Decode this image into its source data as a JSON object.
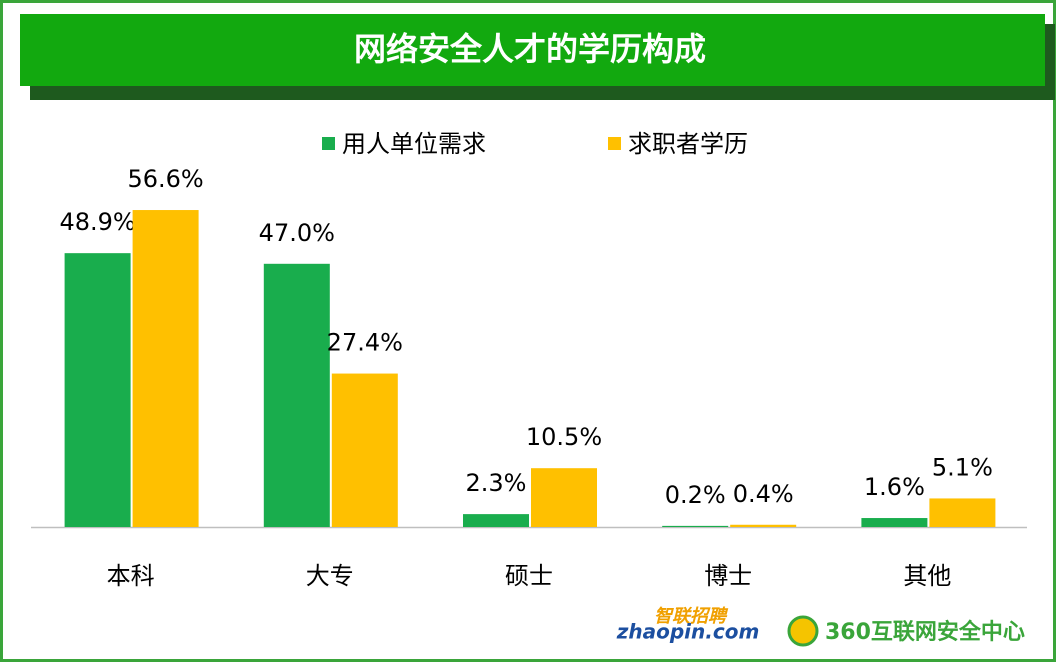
{
  "chart_data": {
    "type": "bar",
    "title": "网络安全人才的学历构成",
    "categories": [
      "本科",
      "大专",
      "硕士",
      "博士",
      "其他"
    ],
    "series": [
      {
        "name": "用人单位需求",
        "color": "#19ad4d",
        "values": [
          48.9,
          47.0,
          2.3,
          0.2,
          1.6
        ],
        "value_labels": [
          "48.9%",
          "47.0%",
          "2.3%",
          "0.2%",
          "1.6%"
        ]
      },
      {
        "name": "求职者学历",
        "color": "#ffc000",
        "values": [
          56.6,
          27.4,
          10.5,
          0.4,
          5.1
        ],
        "value_labels": [
          "56.6%",
          "27.4%",
          "10.5%",
          "0.4%",
          "5.1%"
        ]
      }
    ],
    "legend": "top"
  },
  "logos": {
    "zhaopin_name": "智联招聘",
    "zhaopin_url": "zhaopin.com",
    "qihoo": "360互联网安全中心"
  }
}
